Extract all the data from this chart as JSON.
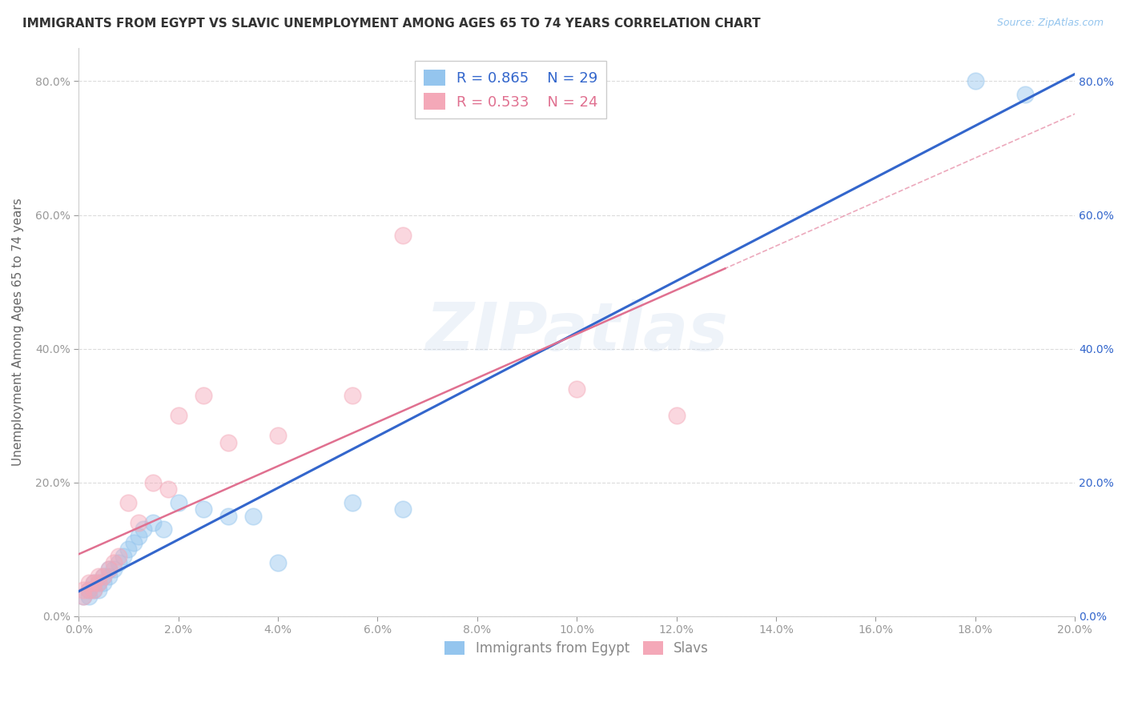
{
  "title": "IMMIGRANTS FROM EGYPT VS SLAVIC UNEMPLOYMENT AMONG AGES 65 TO 74 YEARS CORRELATION CHART",
  "source_text": "Source: ZipAtlas.com",
  "ylabel": "Unemployment Among Ages 65 to 74 years",
  "xlim": [
    0.0,
    0.2
  ],
  "ylim": [
    0.0,
    0.85
  ],
  "xticks": [
    0.0,
    0.02,
    0.04,
    0.06,
    0.08,
    0.1,
    0.12,
    0.14,
    0.16,
    0.18,
    0.2
  ],
  "yticks": [
    0.0,
    0.2,
    0.4,
    0.6,
    0.8
  ],
  "xticklabels": [
    "0.0%",
    "2.0%",
    "4.0%",
    "6.0%",
    "8.0%",
    "10.0%",
    "12.0%",
    "14.0%",
    "16.0%",
    "18.0%",
    "20.0%"
  ],
  "yticklabels": [
    "0.0%",
    "20.0%",
    "40.0%",
    "60.0%",
    "80.0%"
  ],
  "legend_r1": "R = 0.865",
  "legend_n1": "N = 29",
  "legend_r2": "R = 0.533",
  "legend_n2": "N = 24",
  "color_egypt": "#94C5EE",
  "color_slavs": "#F4A8B8",
  "color_egypt_line": "#3366CC",
  "color_slavs_line": "#E07090",
  "watermark": "ZIPatlas",
  "egypt_x": [
    0.001,
    0.002,
    0.002,
    0.003,
    0.003,
    0.004,
    0.004,
    0.005,
    0.005,
    0.006,
    0.006,
    0.007,
    0.008,
    0.009,
    0.01,
    0.011,
    0.012,
    0.013,
    0.015,
    0.017,
    0.02,
    0.025,
    0.03,
    0.035,
    0.04,
    0.055,
    0.065,
    0.18,
    0.19
  ],
  "egypt_y": [
    0.03,
    0.03,
    0.04,
    0.04,
    0.05,
    0.04,
    0.05,
    0.05,
    0.06,
    0.06,
    0.07,
    0.07,
    0.08,
    0.09,
    0.1,
    0.11,
    0.12,
    0.13,
    0.14,
    0.13,
    0.17,
    0.16,
    0.15,
    0.15,
    0.08,
    0.17,
    0.16,
    0.8,
    0.78
  ],
  "slavs_x": [
    0.001,
    0.001,
    0.002,
    0.002,
    0.003,
    0.003,
    0.004,
    0.004,
    0.005,
    0.006,
    0.007,
    0.008,
    0.01,
    0.012,
    0.015,
    0.018,
    0.02,
    0.025,
    0.03,
    0.04,
    0.055,
    0.065,
    0.1,
    0.12
  ],
  "slavs_y": [
    0.03,
    0.04,
    0.04,
    0.05,
    0.04,
    0.05,
    0.05,
    0.06,
    0.06,
    0.07,
    0.08,
    0.09,
    0.17,
    0.14,
    0.2,
    0.19,
    0.3,
    0.33,
    0.26,
    0.27,
    0.33,
    0.57,
    0.34,
    0.3
  ],
  "background_color": "#FFFFFF",
  "grid_color": "#CCCCCC"
}
